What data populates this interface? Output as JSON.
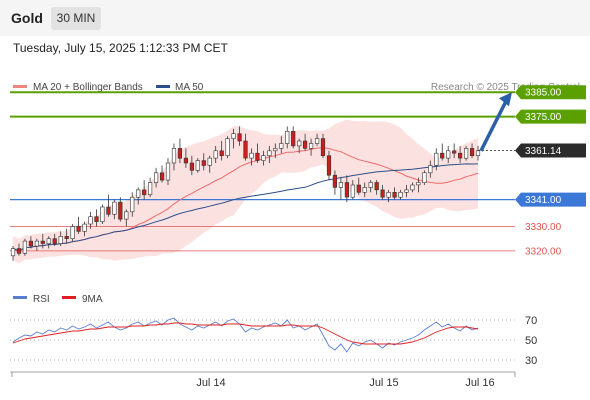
{
  "header": {
    "instrument": "Gold",
    "timeframe": "30 MIN",
    "datetime": "Tuesday, July 15, 2025 1:12:33 PM CET"
  },
  "colors": {
    "price_line_green": "#5aa000",
    "support_blue": "#3b78d8",
    "line_red": "#e05555",
    "bull_candle": "#ffffff",
    "bear_candle": "#c81f1f",
    "bollinger_fill": "#f9c8c8",
    "ma20": "#f06a6a",
    "ma50": "#2c4f8a",
    "arrow": "#2d5fa8",
    "rsi": "#5b7fcf",
    "rsi_ma": "#e02020"
  },
  "chart_data": [
    {
      "type": "candlestick",
      "title": "",
      "legend": [
        {
          "name": "MA 20 + Bollinger Bands",
          "color": "#f0857d"
        },
        {
          "name": "MA 50",
          "color": "#2c4f8a"
        }
      ],
      "legend_placement": "top-left",
      "source": "Research © 2025 Trading Central",
      "x_tick_labels": [
        "Jul 14",
        "Jul 15",
        "Jul 16"
      ],
      "ylim": [
        3313,
        3390
      ],
      "levels": [
        {
          "label": "3385.00",
          "value": 3385.0,
          "kind": "target"
        },
        {
          "label": "3375.00",
          "value": 3375.0,
          "kind": "target"
        },
        {
          "label": "3361.14",
          "value": 3361.14,
          "kind": "last-price"
        },
        {
          "label": "3341.00",
          "value": 3341.0,
          "kind": "pivot"
        },
        {
          "label": "3330.00",
          "value": 3330.0,
          "kind": "support"
        },
        {
          "label": "3320.00",
          "value": 3320.0,
          "kind": "support"
        }
      ],
      "candles": [
        [
          3318,
          3322,
          3316,
          3321
        ],
        [
          3321,
          3323,
          3318,
          3319
        ],
        [
          3319,
          3325,
          3318,
          3324
        ],
        [
          3324,
          3326,
          3321,
          3322
        ],
        [
          3322,
          3325,
          3320,
          3324
        ],
        [
          3324,
          3327,
          3321,
          3323
        ],
        [
          3323,
          3326,
          3321,
          3325
        ],
        [
          3325,
          3327,
          3322,
          3323
        ],
        [
          3323,
          3328,
          3322,
          3326
        ],
        [
          3326,
          3329,
          3323,
          3325
        ],
        [
          3325,
          3331,
          3324,
          3330
        ],
        [
          3330,
          3334,
          3327,
          3328
        ],
        [
          3328,
          3332,
          3326,
          3331
        ],
        [
          3331,
          3336,
          3329,
          3334
        ],
        [
          3334,
          3337,
          3330,
          3332
        ],
        [
          3332,
          3339,
          3331,
          3338
        ],
        [
          3338,
          3343,
          3334,
          3335
        ],
        [
          3335,
          3341,
          3333,
          3340
        ],
        [
          3340,
          3342,
          3332,
          3333
        ],
        [
          3333,
          3337,
          3330,
          3336
        ],
        [
          3336,
          3344,
          3334,
          3342
        ],
        [
          3342,
          3346,
          3339,
          3345
        ],
        [
          3345,
          3349,
          3341,
          3343
        ],
        [
          3343,
          3350,
          3342,
          3348
        ],
        [
          3348,
          3354,
          3346,
          3352
        ],
        [
          3352,
          3355,
          3348,
          3349
        ],
        [
          3349,
          3358,
          3347,
          3356
        ],
        [
          3356,
          3364,
          3353,
          3362
        ],
        [
          3362,
          3366,
          3356,
          3358
        ],
        [
          3358,
          3362,
          3354,
          3356
        ],
        [
          3356,
          3359,
          3351,
          3353
        ],
        [
          3353,
          3358,
          3352,
          3357
        ],
        [
          3357,
          3360,
          3353,
          3355
        ],
        [
          3355,
          3359,
          3352,
          3358
        ],
        [
          3358,
          3363,
          3356,
          3361
        ],
        [
          3361,
          3365,
          3357,
          3359
        ],
        [
          3359,
          3367,
          3358,
          3366
        ],
        [
          3366,
          3370,
          3362,
          3368
        ],
        [
          3368,
          3371,
          3363,
          3365
        ],
        [
          3365,
          3368,
          3357,
          3358
        ],
        [
          3358,
          3362,
          3355,
          3360
        ],
        [
          3360,
          3364,
          3356,
          3357
        ],
        [
          3357,
          3361,
          3355,
          3359
        ],
        [
          3359,
          3363,
          3356,
          3361
        ],
        [
          3361,
          3364,
          3358,
          3362
        ],
        [
          3362,
          3367,
          3360,
          3364
        ],
        [
          3364,
          3371,
          3362,
          3369
        ],
        [
          3369,
          3371,
          3362,
          3363
        ],
        [
          3363,
          3366,
          3360,
          3365
        ],
        [
          3365,
          3368,
          3361,
          3362
        ],
        [
          3362,
          3366,
          3359,
          3364
        ],
        [
          3364,
          3368,
          3363,
          3366
        ],
        [
          3366,
          3368,
          3358,
          3359
        ],
        [
          3359,
          3361,
          3349,
          3351
        ],
        [
          3351,
          3353,
          3343,
          3346
        ],
        [
          3346,
          3350,
          3341,
          3348
        ],
        [
          3348,
          3351,
          3340,
          3342
        ],
        [
          3342,
          3349,
          3341,
          3347
        ],
        [
          3347,
          3350,
          3343,
          3344
        ],
        [
          3344,
          3348,
          3342,
          3346
        ],
        [
          3346,
          3349,
          3344,
          3348
        ],
        [
          3348,
          3349,
          3343,
          3345
        ],
        [
          3345,
          3347,
          3341,
          3342
        ],
        [
          3342,
          3345,
          3340,
          3344
        ],
        [
          3344,
          3346,
          3341,
          3342
        ],
        [
          3342,
          3345,
          3341,
          3344
        ],
        [
          3344,
          3347,
          3342,
          3345
        ],
        [
          3345,
          3348,
          3344,
          3347
        ],
        [
          3347,
          3350,
          3344,
          3348
        ],
        [
          3348,
          3353,
          3347,
          3352
        ],
        [
          3352,
          3357,
          3350,
          3355
        ],
        [
          3355,
          3362,
          3353,
          3360
        ],
        [
          3360,
          3364,
          3357,
          3358
        ],
        [
          3358,
          3363,
          3356,
          3361
        ],
        [
          3361,
          3364,
          3358,
          3360
        ],
        [
          3360,
          3363,
          3356,
          3358
        ],
        [
          3358,
          3363,
          3357,
          3362
        ],
        [
          3362,
          3364,
          3358,
          3359
        ],
        [
          3359,
          3363,
          3357,
          3361
        ]
      ],
      "forecast_arrow": {
        "from": 3361,
        "to": 3385
      }
    },
    {
      "type": "line",
      "title": "",
      "legend": [
        {
          "name": "RSI",
          "color": "#5b7fcf"
        },
        {
          "name": "9MA",
          "color": "#e02020"
        }
      ],
      "ylim": [
        24,
        78
      ],
      "y_ticks": [
        "70",
        "50",
        "30"
      ],
      "series": [
        {
          "name": "RSI",
          "values": [
            48,
            52,
            55,
            54,
            58,
            56,
            60,
            58,
            62,
            60,
            64,
            61,
            63,
            66,
            62,
            65,
            68,
            63,
            60,
            62,
            66,
            68,
            64,
            67,
            69,
            65,
            70,
            72,
            66,
            63,
            60,
            64,
            62,
            65,
            68,
            64,
            69,
            71,
            66,
            58,
            62,
            60,
            63,
            65,
            67,
            64,
            70,
            62,
            64,
            60,
            63,
            66,
            55,
            44,
            40,
            46,
            38,
            47,
            44,
            48,
            50,
            46,
            42,
            47,
            45,
            48,
            50,
            52,
            55,
            60,
            64,
            68,
            63,
            66,
            62,
            59,
            64,
            60,
            62
          ]
        },
        {
          "name": "9MA",
          "values": [
            47,
            49,
            51,
            52,
            53,
            54,
            55,
            56,
            57,
            58,
            59,
            59,
            60,
            61,
            61,
            62,
            63,
            63,
            63,
            63,
            64,
            64,
            64,
            65,
            65,
            66,
            66,
            67,
            67,
            66,
            66,
            65,
            65,
            65,
            65,
            65,
            66,
            66,
            66,
            65,
            64,
            64,
            64,
            64,
            64,
            64,
            65,
            65,
            64,
            64,
            64,
            64,
            62,
            59,
            56,
            53,
            50,
            48,
            47,
            46,
            46,
            46,
            46,
            46,
            46,
            46,
            47,
            48,
            50,
            52,
            55,
            58,
            60,
            62,
            63,
            63,
            63,
            62,
            61
          ]
        }
      ]
    }
  ]
}
